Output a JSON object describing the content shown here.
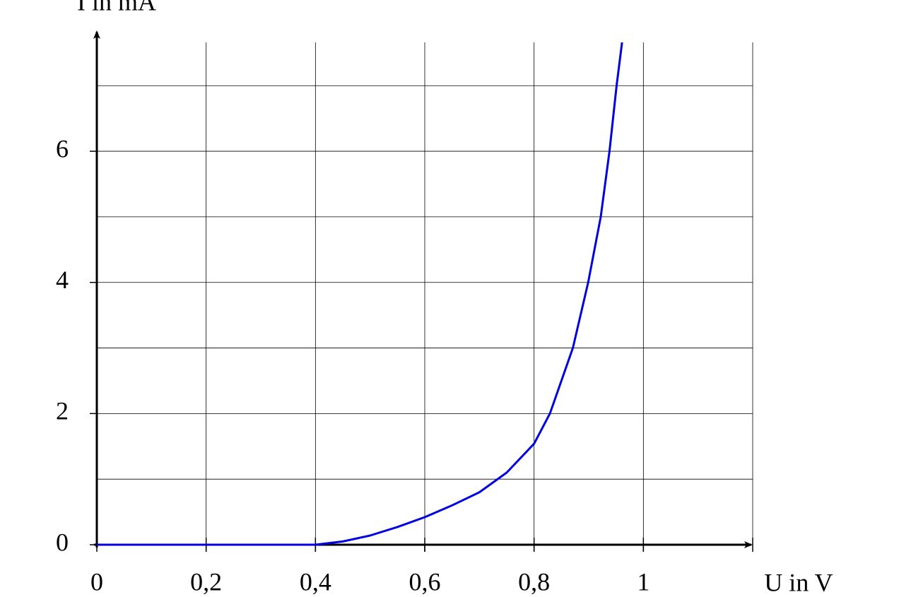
{
  "chart_data": {
    "type": "line",
    "x_label": "U in V",
    "y_label": "I in mA",
    "x": [
      0,
      0.4,
      0.45,
      0.5,
      0.55,
      0.6,
      0.65,
      0.7,
      0.75,
      0.8,
      0.829,
      0.871,
      0.899,
      0.922,
      0.938,
      0.951,
      0.961
    ],
    "series": [
      {
        "color": "#0000e0",
        "values": [
          0,
          0,
          0.05,
          0.14,
          0.27,
          0.42,
          0.6,
          0.8,
          1.1,
          1.54,
          2,
          3,
          4,
          5,
          6,
          7,
          7.66
        ]
      }
    ],
    "xlim": [
      0,
      1.2
    ],
    "ylim": [
      0,
      7.66
    ],
    "xticks": [
      0,
      {
        "value": 0.2,
        "label": "0,2"
      },
      {
        "value": 0.4,
        "label": "0,4"
      },
      {
        "value": 0.6,
        "label": "0,6"
      },
      {
        "value": 0.8,
        "label": "0,8"
      },
      1
    ],
    "yticks": [
      0,
      2,
      4,
      6
    ],
    "x_gridlines": [
      0.2,
      0.4,
      0.6,
      0.8,
      1,
      1.2
    ],
    "y_gridlines": [
      1,
      2,
      3,
      4,
      5,
      6,
      7
    ],
    "grid": true
  }
}
